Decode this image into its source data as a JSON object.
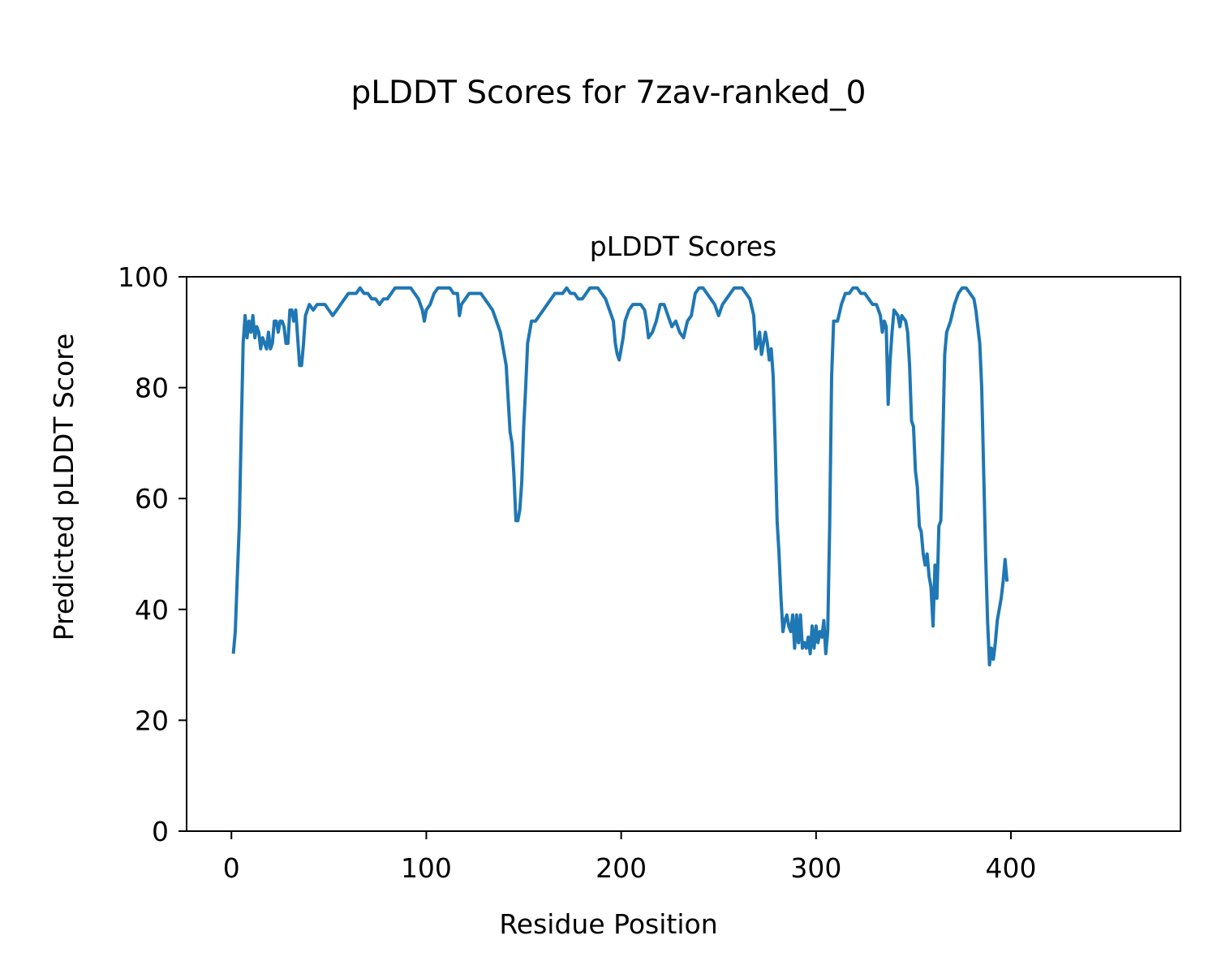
{
  "figure_title": "pLDDT Scores for 7zav-ranked_0",
  "chart_data": {
    "type": "line",
    "title": "pLDDT Scores",
    "xlabel": "Residue Position",
    "ylabel": "Predicted pLDDT Score",
    "xlim": [
      -23,
      487
    ],
    "ylim": [
      0,
      100
    ],
    "xticks": [
      0,
      100,
      200,
      300,
      400
    ],
    "yticks": [
      0,
      20,
      40,
      60,
      80,
      100
    ],
    "grid": false,
    "series": [
      {
        "color": "#1f77b4",
        "points": [
          [
            1,
            32
          ],
          [
            2,
            36
          ],
          [
            3,
            46
          ],
          [
            4,
            55
          ],
          [
            5,
            72
          ],
          [
            6,
            88
          ],
          [
            7,
            93
          ],
          [
            8,
            89
          ],
          [
            9,
            92
          ],
          [
            10,
            90
          ],
          [
            11,
            93
          ],
          [
            12,
            89
          ],
          [
            13,
            91
          ],
          [
            14,
            90
          ],
          [
            15,
            87
          ],
          [
            16,
            89
          ],
          [
            17,
            88
          ],
          [
            18,
            87
          ],
          [
            19,
            90
          ],
          [
            20,
            87
          ],
          [
            21,
            88
          ],
          [
            22,
            92
          ],
          [
            23,
            92
          ],
          [
            24,
            90
          ],
          [
            25,
            92
          ],
          [
            26,
            92
          ],
          [
            27,
            91
          ],
          [
            28,
            88
          ],
          [
            29,
            88
          ],
          [
            30,
            94
          ],
          [
            31,
            94
          ],
          [
            32,
            92
          ],
          [
            33,
            94
          ],
          [
            35,
            84
          ],
          [
            36,
            84
          ],
          [
            37,
            88
          ],
          [
            38,
            93
          ],
          [
            40,
            95
          ],
          [
            42,
            94
          ],
          [
            44,
            95
          ],
          [
            46,
            95
          ],
          [
            48,
            95
          ],
          [
            50,
            94
          ],
          [
            52,
            93
          ],
          [
            54,
            94
          ],
          [
            56,
            95
          ],
          [
            58,
            96
          ],
          [
            60,
            97
          ],
          [
            62,
            97
          ],
          [
            64,
            97
          ],
          [
            66,
            98
          ],
          [
            68,
            97
          ],
          [
            70,
            97
          ],
          [
            72,
            96
          ],
          [
            74,
            96
          ],
          [
            76,
            95
          ],
          [
            78,
            96
          ],
          [
            80,
            96
          ],
          [
            82,
            97
          ],
          [
            84,
            98
          ],
          [
            86,
            98
          ],
          [
            88,
            98
          ],
          [
            90,
            98
          ],
          [
            92,
            98
          ],
          [
            94,
            97
          ],
          [
            96,
            96
          ],
          [
            98,
            94
          ],
          [
            99,
            92
          ],
          [
            100,
            94
          ],
          [
            102,
            95
          ],
          [
            104,
            97
          ],
          [
            106,
            98
          ],
          [
            108,
            98
          ],
          [
            110,
            98
          ],
          [
            112,
            98
          ],
          [
            114,
            97
          ],
          [
            116,
            97
          ],
          [
            117,
            93
          ],
          [
            118,
            95
          ],
          [
            120,
            96
          ],
          [
            122,
            97
          ],
          [
            124,
            97
          ],
          [
            126,
            97
          ],
          [
            128,
            97
          ],
          [
            130,
            96
          ],
          [
            132,
            95
          ],
          [
            134,
            94
          ],
          [
            136,
            92
          ],
          [
            138,
            90
          ],
          [
            139,
            88
          ],
          [
            140,
            86
          ],
          [
            141,
            84
          ],
          [
            142,
            78
          ],
          [
            143,
            72
          ],
          [
            144,
            70
          ],
          [
            145,
            64
          ],
          [
            146,
            56
          ],
          [
            147,
            56
          ],
          [
            148,
            58
          ],
          [
            149,
            63
          ],
          [
            150,
            73
          ],
          [
            151,
            80
          ],
          [
            152,
            88
          ],
          [
            153,
            90
          ],
          [
            154,
            92
          ],
          [
            156,
            92
          ],
          [
            158,
            93
          ],
          [
            160,
            94
          ],
          [
            162,
            95
          ],
          [
            164,
            96
          ],
          [
            166,
            97
          ],
          [
            168,
            97
          ],
          [
            170,
            97
          ],
          [
            172,
            98
          ],
          [
            174,
            97
          ],
          [
            176,
            97
          ],
          [
            178,
            96
          ],
          [
            180,
            96
          ],
          [
            182,
            97
          ],
          [
            184,
            98
          ],
          [
            186,
            98
          ],
          [
            188,
            98
          ],
          [
            190,
            97
          ],
          [
            192,
            96
          ],
          [
            194,
            94
          ],
          [
            196,
            92
          ],
          [
            197,
            88
          ],
          [
            198,
            86
          ],
          [
            199,
            85
          ],
          [
            200,
            87
          ],
          [
            201,
            89
          ],
          [
            202,
            92
          ],
          [
            204,
            94
          ],
          [
            206,
            95
          ],
          [
            208,
            95
          ],
          [
            210,
            95
          ],
          [
            212,
            94
          ],
          [
            213,
            92
          ],
          [
            214,
            89
          ],
          [
            216,
            90
          ],
          [
            218,
            92
          ],
          [
            220,
            95
          ],
          [
            222,
            95
          ],
          [
            224,
            93
          ],
          [
            226,
            91
          ],
          [
            228,
            92
          ],
          [
            230,
            90
          ],
          [
            232,
            89
          ],
          [
            234,
            92
          ],
          [
            236,
            93
          ],
          [
            238,
            97
          ],
          [
            240,
            98
          ],
          [
            242,
            98
          ],
          [
            244,
            97
          ],
          [
            246,
            96
          ],
          [
            248,
            95
          ],
          [
            250,
            93
          ],
          [
            252,
            95
          ],
          [
            254,
            96
          ],
          [
            256,
            97
          ],
          [
            258,
            98
          ],
          [
            260,
            98
          ],
          [
            262,
            98
          ],
          [
            264,
            97
          ],
          [
            266,
            96
          ],
          [
            268,
            93
          ],
          [
            269,
            87
          ],
          [
            270,
            88
          ],
          [
            271,
            90
          ],
          [
            272,
            86
          ],
          [
            273,
            88
          ],
          [
            274,
            90
          ],
          [
            275,
            88
          ],
          [
            276,
            85
          ],
          [
            277,
            87
          ],
          [
            278,
            82
          ],
          [
            279,
            70
          ],
          [
            280,
            56
          ],
          [
            281,
            50
          ],
          [
            282,
            42
          ],
          [
            283,
            36
          ],
          [
            284,
            38
          ],
          [
            285,
            39
          ],
          [
            286,
            37
          ],
          [
            287,
            36
          ],
          [
            288,
            39
          ],
          [
            289,
            33
          ],
          [
            290,
            39
          ],
          [
            291,
            34
          ],
          [
            292,
            39
          ],
          [
            293,
            33
          ],
          [
            294,
            34
          ],
          [
            295,
            33
          ],
          [
            296,
            35
          ],
          [
            297,
            32
          ],
          [
            298,
            37
          ],
          [
            299,
            33
          ],
          [
            300,
            37
          ],
          [
            301,
            34
          ],
          [
            302,
            36
          ],
          [
            303,
            35
          ],
          [
            304,
            38
          ],
          [
            305,
            32
          ],
          [
            306,
            36
          ],
          [
            307,
            55
          ],
          [
            308,
            82
          ],
          [
            309,
            92
          ],
          [
            311,
            92
          ],
          [
            313,
            95
          ],
          [
            315,
            97
          ],
          [
            317,
            97
          ],
          [
            319,
            98
          ],
          [
            321,
            98
          ],
          [
            323,
            97
          ],
          [
            325,
            97
          ],
          [
            327,
            96
          ],
          [
            329,
            95
          ],
          [
            331,
            95
          ],
          [
            333,
            93
          ],
          [
            334,
            90
          ],
          [
            335,
            92
          ],
          [
            336,
            91
          ],
          [
            337,
            77
          ],
          [
            338,
            85
          ],
          [
            339,
            90
          ],
          [
            340,
            94
          ],
          [
            342,
            93
          ],
          [
            343,
            91
          ],
          [
            344,
            93
          ],
          [
            346,
            92
          ],
          [
            347,
            90
          ],
          [
            348,
            84
          ],
          [
            349,
            74
          ],
          [
            350,
            73
          ],
          [
            351,
            65
          ],
          [
            352,
            62
          ],
          [
            353,
            55
          ],
          [
            354,
            54
          ],
          [
            355,
            50
          ],
          [
            356,
            48
          ],
          [
            357,
            50
          ],
          [
            358,
            46
          ],
          [
            359,
            44
          ],
          [
            360,
            37
          ],
          [
            361,
            48
          ],
          [
            362,
            42
          ],
          [
            363,
            55
          ],
          [
            364,
            56
          ],
          [
            365,
            70
          ],
          [
            366,
            86
          ],
          [
            367,
            90
          ],
          [
            369,
            92
          ],
          [
            371,
            95
          ],
          [
            373,
            97
          ],
          [
            375,
            98
          ],
          [
            377,
            98
          ],
          [
            379,
            97
          ],
          [
            381,
            96
          ],
          [
            382,
            94
          ],
          [
            383,
            91
          ],
          [
            384,
            88
          ],
          [
            385,
            80
          ],
          [
            386,
            65
          ],
          [
            387,
            50
          ],
          [
            388,
            38
          ],
          [
            389,
            30
          ],
          [
            390,
            33
          ],
          [
            391,
            31
          ],
          [
            392,
            34
          ],
          [
            393,
            38
          ],
          [
            394,
            40
          ],
          [
            395,
            42
          ],
          [
            396,
            45
          ],
          [
            397,
            49
          ],
          [
            398,
            45
          ]
        ]
      }
    ]
  }
}
